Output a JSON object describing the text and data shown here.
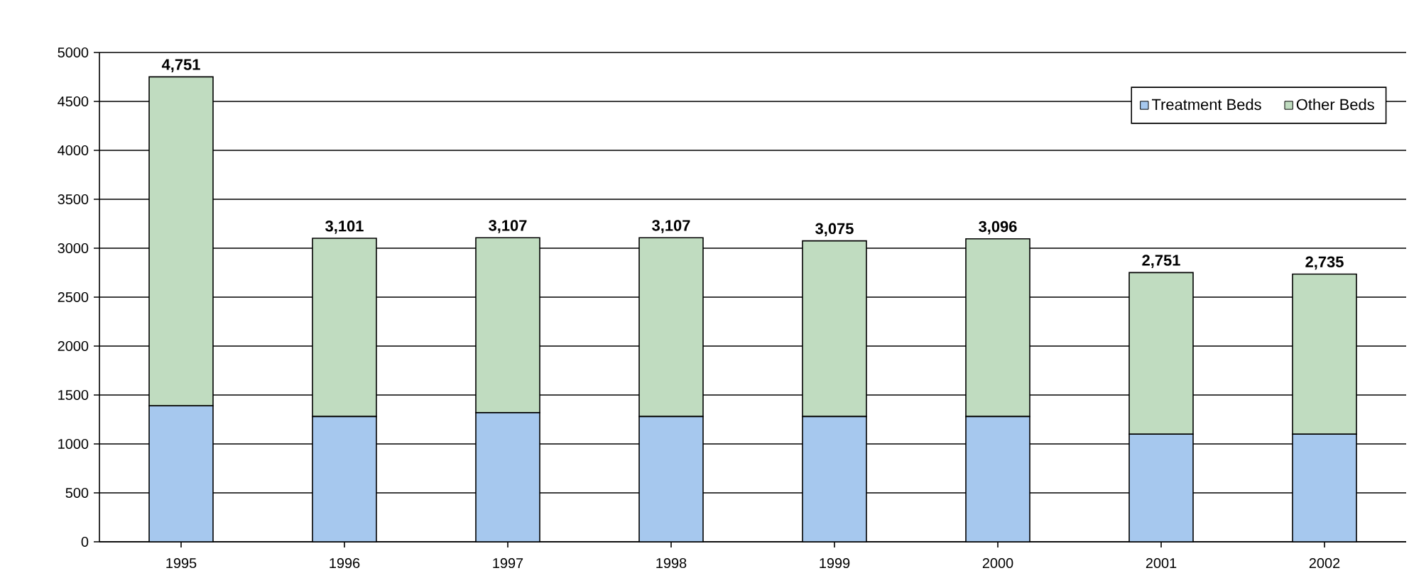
{
  "chart_data": {
    "type": "bar",
    "stacked": true,
    "categories": [
      "1995",
      "1996",
      "1997",
      "1998",
      "1999",
      "2000",
      "2001",
      "2002"
    ],
    "series": [
      {
        "name": "Treatment Beds",
        "color": "#a6c8ee",
        "values": [
          1390,
          1280,
          1320,
          1280,
          1280,
          1280,
          1100,
          1100
        ]
      },
      {
        "name": "Other Beds",
        "color": "#c0dcc0",
        "values": [
          3361,
          1821,
          1787,
          1827,
          1795,
          1816,
          1651,
          1635
        ]
      }
    ],
    "totals": [
      "4,751",
      "3,101",
      "3,107",
      "3,107",
      "3,075",
      "3,096",
      "2,751",
      "2,735"
    ],
    "ylim": [
      0,
      5000
    ],
    "yticks": [
      0,
      500,
      1000,
      1500,
      2000,
      2500,
      3000,
      3500,
      4000,
      4500,
      5000
    ],
    "grid": "y",
    "legend": "top right"
  }
}
